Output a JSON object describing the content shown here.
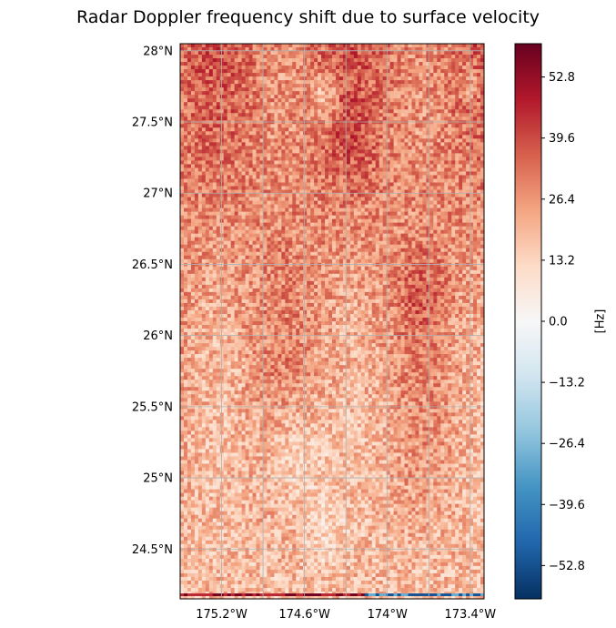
{
  "chart_data": {
    "type": "heatmap",
    "title": "Radar Doppler frequency shift due to surface velocity",
    "x_ticks": [
      "175.2°W",
      "174.6°W",
      "174°W",
      "173.4°W"
    ],
    "x_tick_values": [
      -175.2,
      -174.6,
      -174.0,
      -173.4
    ],
    "y_ticks": [
      "24.5°N",
      "25°N",
      "25.5°N",
      "26°N",
      "26.5°N",
      "27°N",
      "27.5°N",
      "28°N"
    ],
    "y_tick_values": [
      24.5,
      25.0,
      25.5,
      26.0,
      26.5,
      27.0,
      27.5,
      28.0
    ],
    "lon_range": [
      -175.5,
      -173.3
    ],
    "lat_range": [
      24.15,
      28.05
    ],
    "grid": true,
    "colormap": "RdBu_r",
    "colorbar": {
      "label": "[Hz]",
      "range": [
        -60,
        60
      ],
      "ticks": [
        "52.8",
        "39.6",
        "26.4",
        "13.2",
        "0.0",
        "−13.2",
        "−26.4",
        "−39.6",
        "−52.8"
      ],
      "tick_values": [
        52.8,
        39.6,
        26.4,
        13.2,
        0.0,
        -13.2,
        -26.4,
        -39.6,
        -52.8
      ]
    },
    "field_description": {
      "typical_value_hz": 28,
      "north_mean_hz": 33,
      "south_mean_hz": 18,
      "noise_hz": 7
    }
  }
}
